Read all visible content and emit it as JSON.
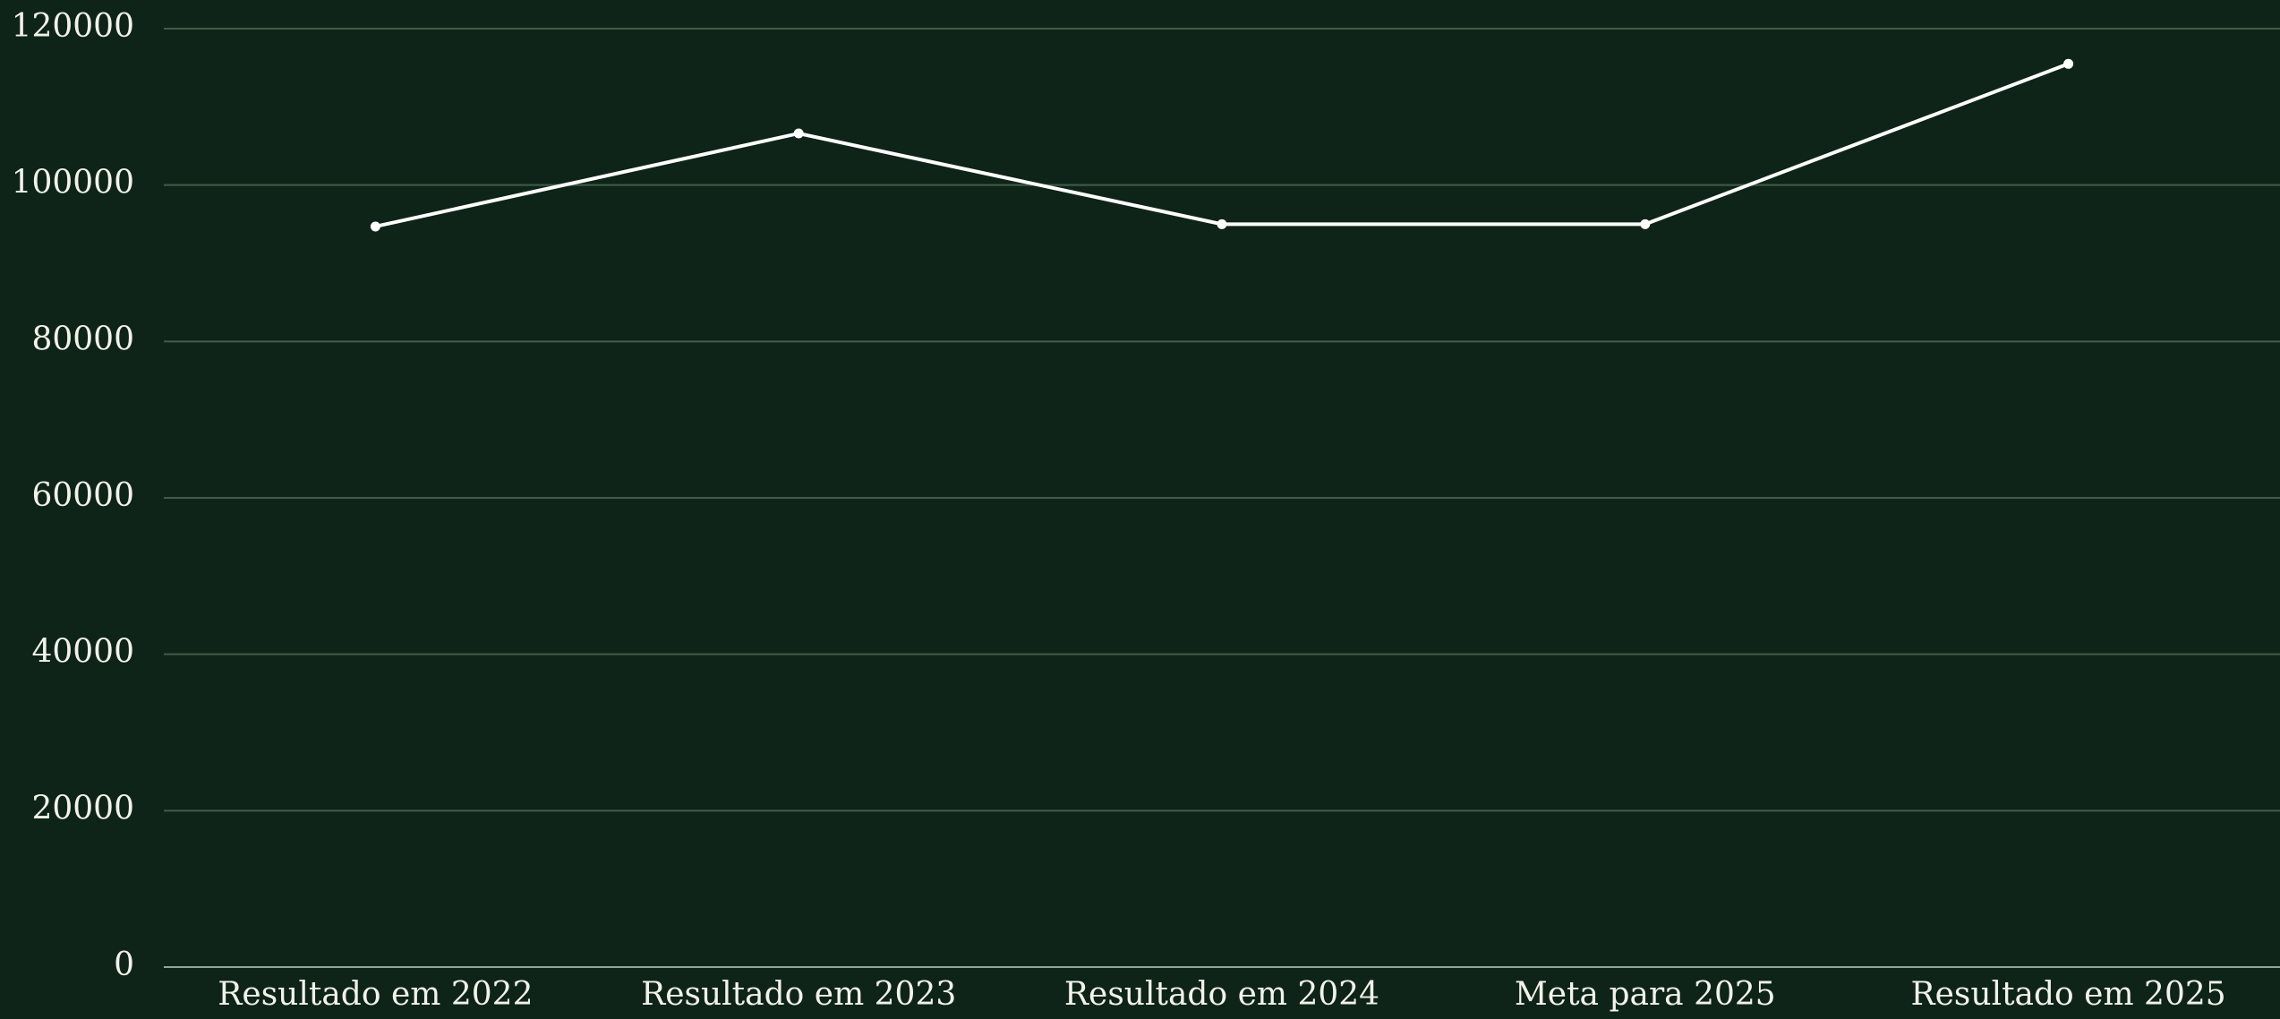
{
  "chart_data": {
    "type": "line",
    "categories": [
      "Resultado em 2022",
      "Resultado em 2023",
      "Resultado em 2024",
      "Meta para 2025",
      "Resultado em 2025"
    ],
    "values": [
      94700,
      106600,
      95000,
      95000,
      115500
    ],
    "color": "#ffffff",
    "ylim": [
      0,
      120000
    ],
    "yticks": [
      0,
      20000,
      40000,
      60000,
      80000,
      100000,
      120000
    ],
    "grid": true
  }
}
